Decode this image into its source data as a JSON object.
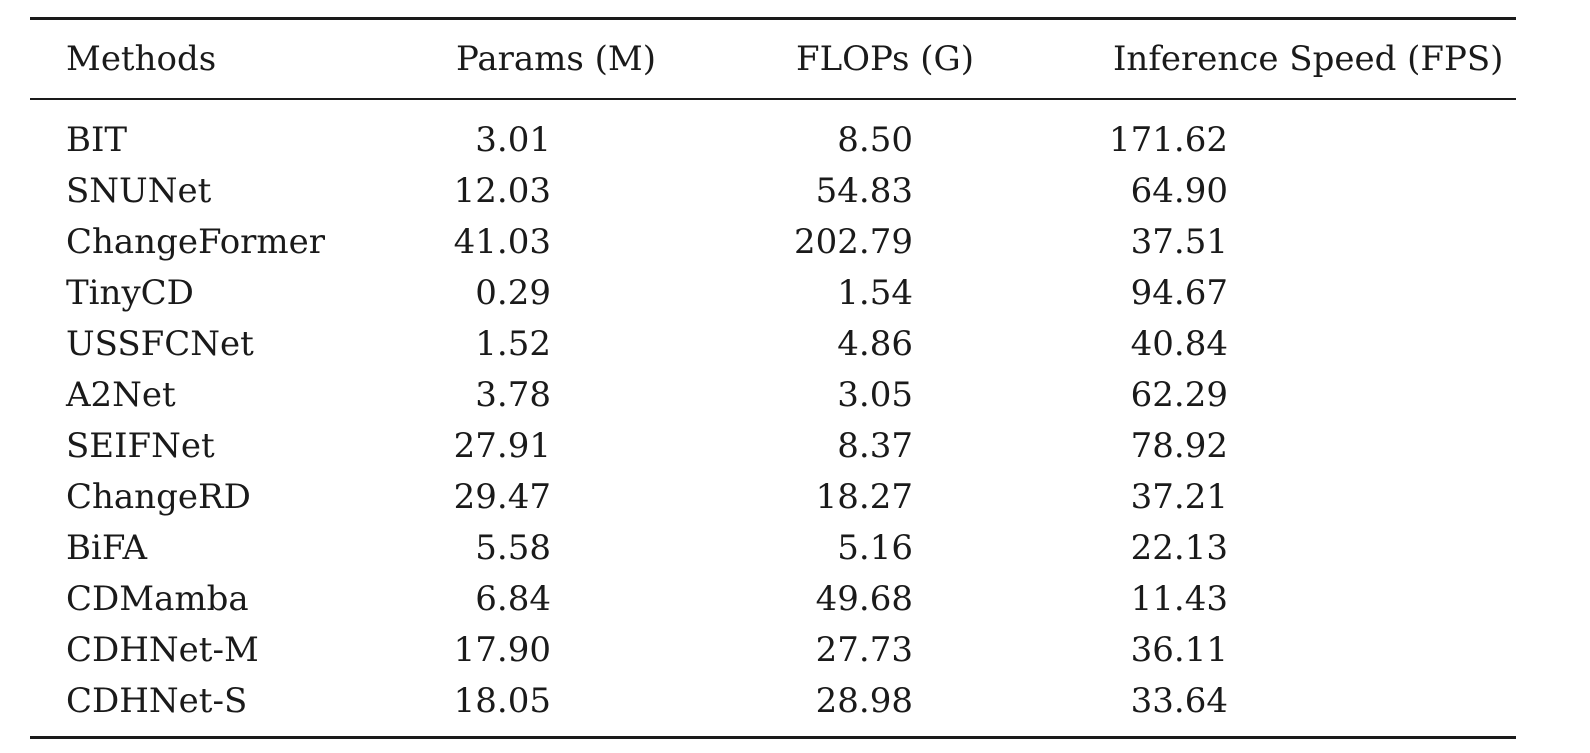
{
  "table": {
    "headers": {
      "method": "Methods",
      "params": "Params (M)",
      "flops": "FLOPs (G)",
      "speed": "Inference Speed (FPS)"
    },
    "rows": [
      {
        "method": "BIT",
        "params": "3.01",
        "flops": "8.50",
        "speed": "171.62"
      },
      {
        "method": "SNUNet",
        "params": "12.03",
        "flops": "54.83",
        "speed": "64.90"
      },
      {
        "method": "ChangeFormer",
        "params": "41.03",
        "flops": "202.79",
        "speed": "37.51"
      },
      {
        "method": "TinyCD",
        "params": "0.29",
        "flops": "1.54",
        "speed": "94.67"
      },
      {
        "method": "USSFCNet",
        "params": "1.52",
        "flops": "4.86",
        "speed": "40.84"
      },
      {
        "method": "A2Net",
        "params": "3.78",
        "flops": "3.05",
        "speed": "62.29"
      },
      {
        "method": "SEIFNet",
        "params": "27.91",
        "flops": "8.37",
        "speed": "78.92"
      },
      {
        "method": "ChangeRD",
        "params": "29.47",
        "flops": "18.27",
        "speed": "37.21"
      },
      {
        "method": "BiFA",
        "params": "5.58",
        "flops": "5.16",
        "speed": "22.13"
      },
      {
        "method": "CDMamba",
        "params": "6.84",
        "flops": "49.68",
        "speed": "11.43"
      },
      {
        "method": "CDHNet-M",
        "params": "17.90",
        "flops": "27.73",
        "speed": "36.11"
      },
      {
        "method": "CDHNet-S",
        "params": "18.05",
        "flops": "28.98",
        "speed": "33.64"
      }
    ]
  }
}
